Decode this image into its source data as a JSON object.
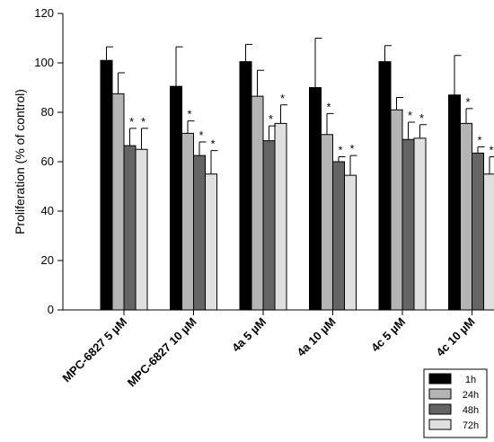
{
  "chart_data": {
    "type": "bar",
    "ylabel": "Proliferation (% of control)",
    "xlabel": "",
    "ylim": [
      0,
      120
    ],
    "yticks": [
      0,
      20,
      40,
      60,
      80,
      100,
      120
    ],
    "categories": [
      "MPC-6827 5 µM",
      "MPC-6827 10 µM",
      "4a 5 µM",
      "4a 10 µM",
      "4c 5 µM",
      "4c 10 µM"
    ],
    "series": [
      {
        "name": "1h",
        "color": "#000000",
        "values": [
          101,
          90.5,
          100.5,
          90,
          100.5,
          87
        ],
        "errors": [
          5.5,
          16,
          7,
          20,
          6.5,
          16
        ],
        "significant": [
          false,
          false,
          false,
          false,
          false,
          false
        ]
      },
      {
        "name": "24h",
        "color": "#b4b4b4",
        "values": [
          87.5,
          71.5,
          86.5,
          71,
          81,
          75.5
        ],
        "errors": [
          8.5,
          5,
          10.5,
          8.5,
          5,
          6
        ],
        "significant": [
          false,
          true,
          false,
          true,
          false,
          true
        ]
      },
      {
        "name": "48h",
        "color": "#646464",
        "values": [
          66.5,
          62.5,
          68.5,
          60,
          69,
          63.5
        ],
        "errors": [
          7,
          5.5,
          6,
          2,
          7,
          2.5
        ],
        "significant": [
          true,
          true,
          true,
          true,
          true,
          true
        ]
      },
      {
        "name": "72h",
        "color": "#e0e0e0",
        "values": [
          65,
          55,
          75.5,
          54.5,
          69.5,
          55
        ],
        "errors": [
          8.5,
          9.5,
          7.5,
          8,
          5.5,
          7
        ],
        "significant": [
          true,
          true,
          true,
          true,
          true,
          true
        ]
      }
    ],
    "significance_marker": "*",
    "legend_position": "bottom-right",
    "grid": false
  }
}
